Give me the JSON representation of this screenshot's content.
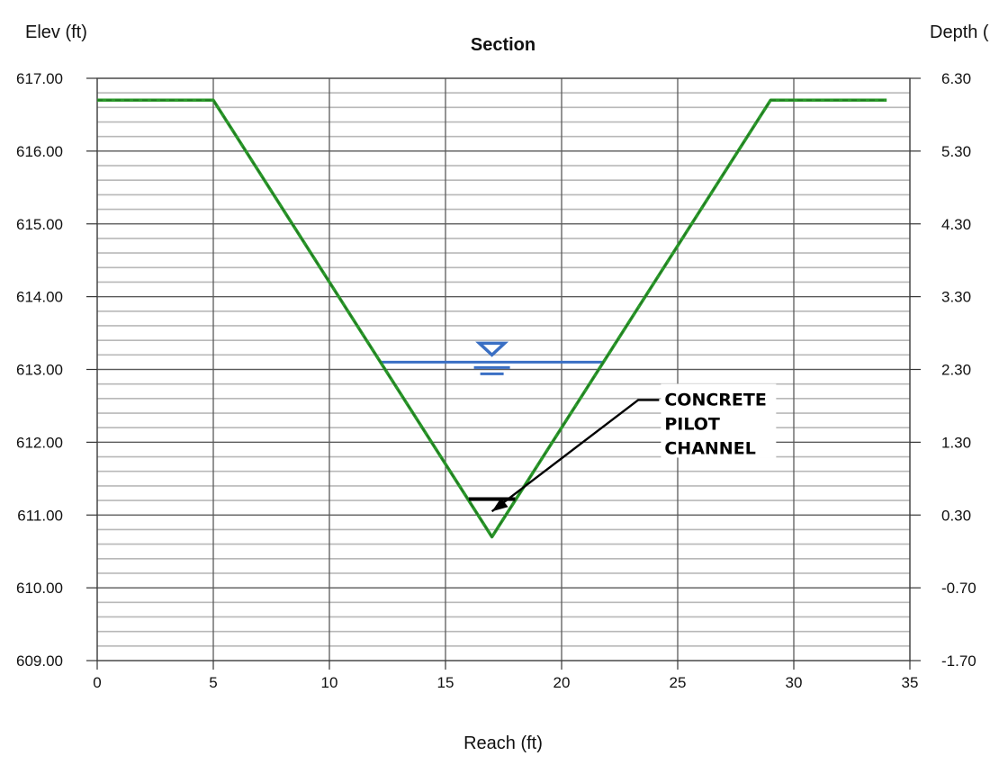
{
  "chart_data": {
    "type": "line",
    "title": "Section",
    "xlabel": "Reach (ft)",
    "ylabel_left": "Elev (ft)",
    "ylabel_right": "Depth (",
    "xlim": [
      0,
      35
    ],
    "ylim": [
      609.0,
      617.0
    ],
    "x_ticks": [
      0,
      5,
      10,
      15,
      20,
      25,
      30,
      35
    ],
    "x_tick_labels": [
      "0",
      "5",
      "10",
      "15",
      "20",
      "25",
      "30",
      "35"
    ],
    "y_left_ticks": [
      609.0,
      610.0,
      611.0,
      612.0,
      613.0,
      614.0,
      615.0,
      616.0,
      617.0
    ],
    "y_left_tick_labels": [
      "609.00",
      "610.00",
      "611.00",
      "612.00",
      "613.00",
      "614.00",
      "615.00",
      "616.00",
      "617.00"
    ],
    "y_right_tick_labels": [
      "-1.70",
      "-0.70",
      "0.30",
      "1.30",
      "2.30",
      "3.30",
      "4.30",
      "5.30",
      "6.30"
    ],
    "y_minor_step": 0.2,
    "grid": true,
    "series": [
      {
        "color": "#2a9a2a",
        "x": [
          0,
          5,
          17,
          29,
          34
        ],
        "y": [
          616.7,
          616.7,
          610.7,
          616.7,
          616.7
        ]
      }
    ],
    "water_surface": {
      "color": "#3a6fc4",
      "x": [
        12.2,
        21.8
      ],
      "y": 613.1
    },
    "pilot_channel": {
      "color": "#000000",
      "x": [
        16.0,
        18.0
      ],
      "y": 611.22
    },
    "annotation": {
      "lines": [
        "CONCRETE",
        "PILOT",
        "CHANNEL"
      ],
      "leader_x": [
        17.0,
        23.3,
        24.2
      ],
      "leader_y": [
        611.05,
        612.58,
        612.58
      ]
    }
  }
}
